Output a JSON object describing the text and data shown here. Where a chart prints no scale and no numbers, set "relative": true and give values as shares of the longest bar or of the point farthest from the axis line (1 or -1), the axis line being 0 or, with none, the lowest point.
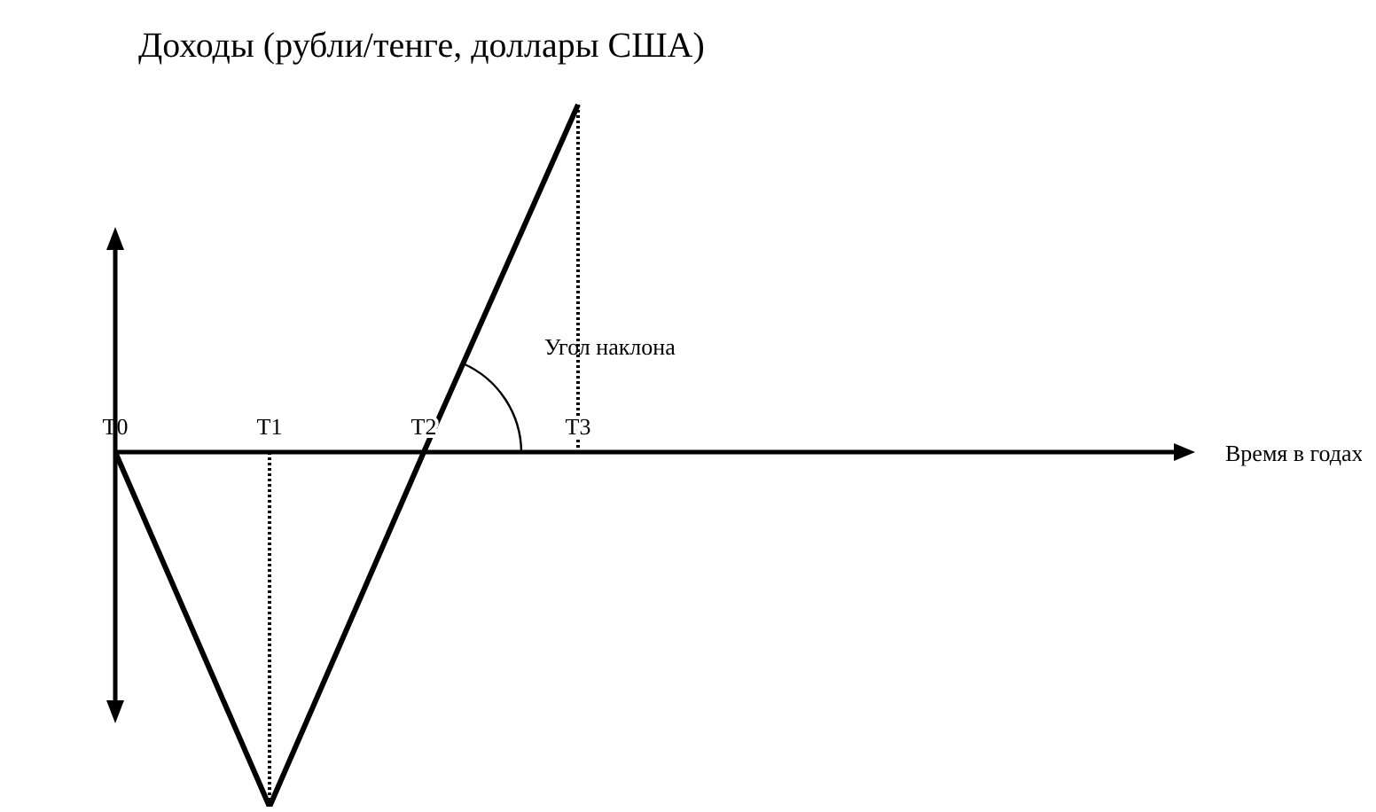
{
  "chart_data": {
    "type": "line",
    "ylabel": "Доходы (рубли/тенге, доллары США)",
    "categories": [
      "T0",
      "T1",
      "T2",
      "T3"
    ],
    "series": [
      {
        "color": "#000000",
        "values": [
          0,
          -1,
          0,
          0.98
        ]
      },
      {
        "type": "line",
        "color": "#000000",
        "x": [
          "T1",
          "T1"
        ],
        "values": [
          0,
          -1
        ],
        "line_style": "dotted"
      },
      {
        "type": "line",
        "color": "#000000",
        "x": [
          "T3",
          "T3"
        ],
        "values": [
          0.98,
          0
        ],
        "line_style": "dotted"
      }
    ],
    "relative": true,
    "marker": "none",
    "line_style": "solid",
    "annotations": [
      "Угол наклона",
      "Время в годах"
    ]
  }
}
